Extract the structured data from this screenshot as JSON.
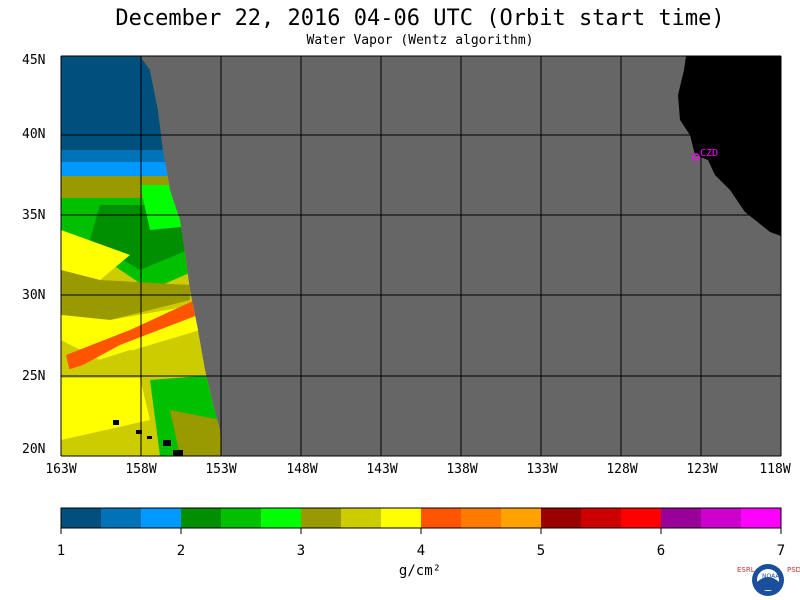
{
  "title": "December 22, 2016  04-06 UTC  (Orbit start time)",
  "subtitle": "Water Vapor (Wentz algorithm)",
  "lat_labels": [
    "45N",
    "40N",
    "35N",
    "30N",
    "25N",
    "20N"
  ],
  "lon_labels": [
    "163W",
    "158W",
    "153W",
    "148W",
    "143W",
    "138W",
    "133W",
    "128W",
    "123W",
    "118W"
  ],
  "station_label": "CZD",
  "colorbar": {
    "tick_labels": [
      "1",
      "2",
      "3",
      "4",
      "5",
      "6",
      "7"
    ],
    "units": "g/cm²",
    "colors": [
      "#004f7d",
      "#0073b8",
      "#0099ff",
      "#008f00",
      "#00c000",
      "#00ff00",
      "#999900",
      "#cccc00",
      "#ffff00",
      "#ff5500",
      "#ff7a00",
      "#ffa200",
      "#990000",
      "#cc0000",
      "#ff0000",
      "#990099",
      "#cc00cc",
      "#ff00ff"
    ]
  },
  "colors": {
    "missing_data": "#666666",
    "land": "#000000",
    "grid": "#000000",
    "station": "#ff00ff"
  },
  "logo_letters": {
    "left": "ESRL",
    "right": "PSD",
    "center": "NOAA"
  }
}
